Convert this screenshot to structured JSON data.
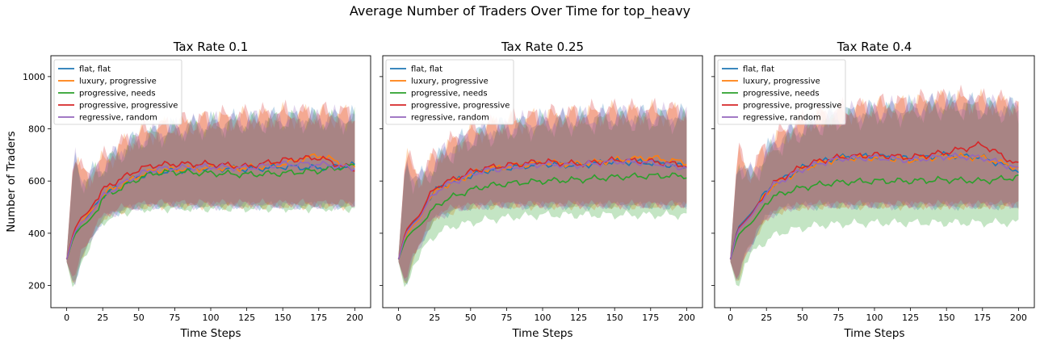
{
  "figure": {
    "suptitle": "Average Number of Traders Over Time for top_heavy"
  },
  "series_colors": {
    "flat, flat": "#1f77b4",
    "luxury, progressive": "#ff7f0e",
    "progressive, needs": "#2ca02c",
    "progressive, progressive": "#d62728",
    "regressive, random": "#9467bd"
  },
  "chart_data": [
    {
      "type": "line",
      "title": "Tax Rate 0.1",
      "xlabel": "Time Steps",
      "ylabel": "Number of Traders",
      "xlim": [
        -11,
        211
      ],
      "ylim": [
        115,
        1080
      ],
      "xticks": [
        0,
        25,
        50,
        75,
        100,
        125,
        150,
        175,
        200
      ],
      "yticks": [
        200,
        400,
        600,
        800,
        1000
      ],
      "legend": "top-left",
      "x": [
        0,
        5,
        10,
        15,
        20,
        25,
        30,
        40,
        50,
        60,
        75,
        100,
        125,
        150,
        175,
        200
      ],
      "series": [
        {
          "name": "flat, flat",
          "values": [
            300,
            395,
            440,
            470,
            510,
            545,
            560,
            590,
            620,
            630,
            640,
            650,
            645,
            655,
            650,
            660
          ],
          "band_low": [
            290,
            200,
            300,
            350,
            410,
            450,
            470,
            490,
            500,
            505,
            505,
            505,
            505,
            505,
            505,
            505
          ],
          "band_high": [
            320,
            700,
            620,
            600,
            640,
            660,
            680,
            730,
            760,
            780,
            800,
            820,
            830,
            840,
            840,
            840
          ]
        },
        {
          "name": "luxury, progressive",
          "values": [
            300,
            400,
            440,
            475,
            505,
            545,
            565,
            590,
            620,
            640,
            645,
            650,
            650,
            665,
            700,
            650
          ],
          "band_low": [
            290,
            190,
            310,
            360,
            415,
            455,
            470,
            490,
            500,
            505,
            505,
            505,
            505,
            505,
            505,
            505
          ],
          "band_high": [
            320,
            710,
            630,
            610,
            650,
            670,
            690,
            740,
            770,
            790,
            810,
            830,
            840,
            850,
            850,
            850
          ]
        },
        {
          "name": "progressive, needs",
          "values": [
            300,
            390,
            425,
            445,
            480,
            535,
            550,
            580,
            610,
            630,
            635,
            630,
            625,
            630,
            640,
            660
          ],
          "band_low": [
            290,
            170,
            290,
            340,
            400,
            440,
            460,
            480,
            490,
            495,
            495,
            495,
            495,
            495,
            495,
            495
          ],
          "band_high": [
            320,
            690,
            610,
            590,
            630,
            650,
            670,
            720,
            750,
            770,
            790,
            810,
            820,
            830,
            830,
            830
          ]
        },
        {
          "name": "progressive, progressive",
          "values": [
            300,
            410,
            460,
            480,
            525,
            565,
            585,
            615,
            645,
            660,
            665,
            665,
            655,
            680,
            690,
            640
          ],
          "band_low": [
            290,
            220,
            320,
            370,
            425,
            465,
            480,
            500,
            510,
            515,
            515,
            515,
            515,
            515,
            515,
            515
          ],
          "band_high": [
            320,
            720,
            640,
            620,
            660,
            680,
            700,
            750,
            780,
            800,
            820,
            840,
            850,
            860,
            860,
            860
          ]
        },
        {
          "name": "regressive, random",
          "values": [
            300,
            400,
            440,
            460,
            500,
            540,
            560,
            595,
            625,
            645,
            650,
            655,
            650,
            665,
            665,
            650
          ],
          "band_low": [
            290,
            200,
            300,
            355,
            410,
            450,
            470,
            490,
            500,
            505,
            505,
            505,
            505,
            505,
            505,
            505
          ],
          "band_high": [
            320,
            700,
            620,
            600,
            640,
            660,
            680,
            730,
            760,
            780,
            800,
            820,
            830,
            840,
            840,
            840
          ]
        }
      ]
    },
    {
      "type": "line",
      "title": "Tax Rate 0.25",
      "xlabel": "Time Steps",
      "ylabel": "",
      "xlim": [
        -11,
        211
      ],
      "ylim": [
        115,
        1080
      ],
      "xticks": [
        0,
        25,
        50,
        75,
        100,
        125,
        150,
        175,
        200
      ],
      "yticks": [
        200,
        400,
        600,
        800,
        1000
      ],
      "legend": "top-left",
      "x": [
        0,
        5,
        10,
        15,
        20,
        25,
        30,
        40,
        50,
        60,
        75,
        100,
        125,
        150,
        175,
        200
      ],
      "series": [
        {
          "name": "flat, flat",
          "values": [
            300,
            400,
            440,
            460,
            520,
            560,
            580,
            600,
            620,
            640,
            650,
            665,
            660,
            675,
            670,
            655
          ],
          "band_low": [
            290,
            200,
            300,
            350,
            410,
            450,
            470,
            490,
            500,
            505,
            505,
            505,
            505,
            505,
            505,
            505
          ],
          "band_high": [
            320,
            700,
            620,
            600,
            640,
            670,
            700,
            740,
            770,
            790,
            810,
            830,
            840,
            850,
            850,
            850
          ]
        },
        {
          "name": "luxury, progressive",
          "values": [
            300,
            390,
            430,
            455,
            515,
            555,
            575,
            600,
            625,
            645,
            655,
            670,
            665,
            680,
            690,
            670
          ],
          "band_low": [
            290,
            190,
            305,
            355,
            415,
            455,
            470,
            490,
            500,
            505,
            505,
            505,
            505,
            505,
            505,
            505
          ],
          "band_high": [
            320,
            710,
            630,
            610,
            650,
            680,
            710,
            750,
            780,
            800,
            820,
            840,
            850,
            860,
            860,
            860
          ]
        },
        {
          "name": "progressive, needs",
          "values": [
            300,
            380,
            410,
            430,
            460,
            500,
            520,
            545,
            565,
            580,
            590,
            600,
            605,
            615,
            620,
            620
          ],
          "band_low": [
            290,
            170,
            280,
            320,
            360,
            390,
            410,
            430,
            440,
            450,
            460,
            470,
            470,
            470,
            470,
            470
          ],
          "band_high": [
            320,
            690,
            600,
            580,
            620,
            650,
            680,
            720,
            750,
            770,
            790,
            810,
            820,
            830,
            830,
            830
          ]
        },
        {
          "name": "progressive, progressive",
          "values": [
            300,
            410,
            445,
            470,
            530,
            570,
            590,
            610,
            635,
            650,
            660,
            675,
            665,
            680,
            675,
            660
          ],
          "band_low": [
            290,
            210,
            315,
            365,
            425,
            460,
            480,
            500,
            505,
            510,
            510,
            510,
            510,
            510,
            510,
            510
          ],
          "band_high": [
            320,
            720,
            640,
            620,
            660,
            690,
            720,
            760,
            790,
            810,
            830,
            850,
            860,
            870,
            870,
            870
          ]
        },
        {
          "name": "regressive, random",
          "values": [
            300,
            400,
            435,
            460,
            515,
            555,
            575,
            600,
            625,
            640,
            650,
            665,
            660,
            675,
            670,
            650
          ],
          "band_low": [
            290,
            200,
            300,
            350,
            410,
            450,
            470,
            490,
            500,
            505,
            505,
            505,
            505,
            505,
            505,
            505
          ],
          "band_high": [
            320,
            700,
            620,
            600,
            640,
            670,
            700,
            740,
            770,
            790,
            810,
            830,
            840,
            850,
            850,
            850
          ]
        }
      ]
    },
    {
      "type": "line",
      "title": "Tax Rate 0.4",
      "xlabel": "Time Steps",
      "ylabel": "",
      "xlim": [
        -11,
        211
      ],
      "ylim": [
        115,
        1080
      ],
      "xticks": [
        0,
        25,
        50,
        75,
        100,
        125,
        150,
        175,
        200
      ],
      "yticks": [
        200,
        400,
        600,
        800,
        1000
      ],
      "legend": "top-left",
      "x": [
        0,
        5,
        10,
        15,
        20,
        25,
        30,
        40,
        50,
        60,
        75,
        100,
        125,
        150,
        175,
        200
      ],
      "series": [
        {
          "name": "flat, flat",
          "values": [
            300,
            420,
            450,
            480,
            520,
            560,
            590,
            620,
            650,
            670,
            690,
            695,
            685,
            700,
            690,
            640
          ],
          "band_low": [
            290,
            210,
            320,
            360,
            420,
            460,
            480,
            500,
            505,
            505,
            505,
            505,
            505,
            505,
            505,
            505
          ],
          "band_high": [
            320,
            700,
            640,
            620,
            670,
            710,
            740,
            780,
            810,
            830,
            850,
            870,
            880,
            900,
            890,
            880
          ]
        },
        {
          "name": "luxury, progressive",
          "values": [
            300,
            410,
            440,
            470,
            515,
            555,
            585,
            615,
            645,
            665,
            685,
            690,
            680,
            695,
            690,
            650
          ],
          "band_low": [
            290,
            200,
            310,
            355,
            415,
            455,
            475,
            495,
            500,
            505,
            505,
            505,
            505,
            505,
            505,
            505
          ],
          "band_high": [
            320,
            710,
            650,
            630,
            680,
            720,
            750,
            790,
            820,
            840,
            860,
            880,
            890,
            910,
            900,
            890
          ]
        },
        {
          "name": "progressive, needs",
          "values": [
            300,
            390,
            420,
            440,
            480,
            520,
            540,
            560,
            575,
            585,
            595,
            600,
            600,
            605,
            600,
            615
          ],
          "band_low": [
            290,
            180,
            290,
            320,
            350,
            370,
            390,
            410,
            420,
            430,
            435,
            440,
            440,
            440,
            440,
            440
          ],
          "band_high": [
            320,
            690,
            620,
            600,
            650,
            690,
            720,
            760,
            790,
            810,
            830,
            850,
            860,
            880,
            870,
            860
          ]
        },
        {
          "name": "progressive, progressive",
          "values": [
            300,
            415,
            445,
            475,
            520,
            560,
            590,
            625,
            655,
            675,
            690,
            700,
            690,
            710,
            740,
            660
          ],
          "band_low": [
            290,
            210,
            320,
            360,
            420,
            460,
            480,
            500,
            505,
            510,
            510,
            510,
            510,
            510,
            510,
            510
          ],
          "band_high": [
            320,
            720,
            660,
            640,
            690,
            730,
            760,
            800,
            830,
            850,
            870,
            890,
            900,
            920,
            910,
            900
          ]
        },
        {
          "name": "regressive, random",
          "values": [
            300,
            410,
            440,
            470,
            515,
            555,
            585,
            615,
            645,
            665,
            685,
            690,
            680,
            695,
            690,
            645
          ],
          "band_low": [
            290,
            200,
            310,
            355,
            415,
            455,
            475,
            495,
            500,
            505,
            505,
            505,
            505,
            505,
            505,
            505
          ],
          "band_high": [
            320,
            700,
            640,
            620,
            670,
            710,
            740,
            780,
            810,
            830,
            850,
            870,
            880,
            900,
            890,
            880
          ]
        }
      ]
    }
  ]
}
